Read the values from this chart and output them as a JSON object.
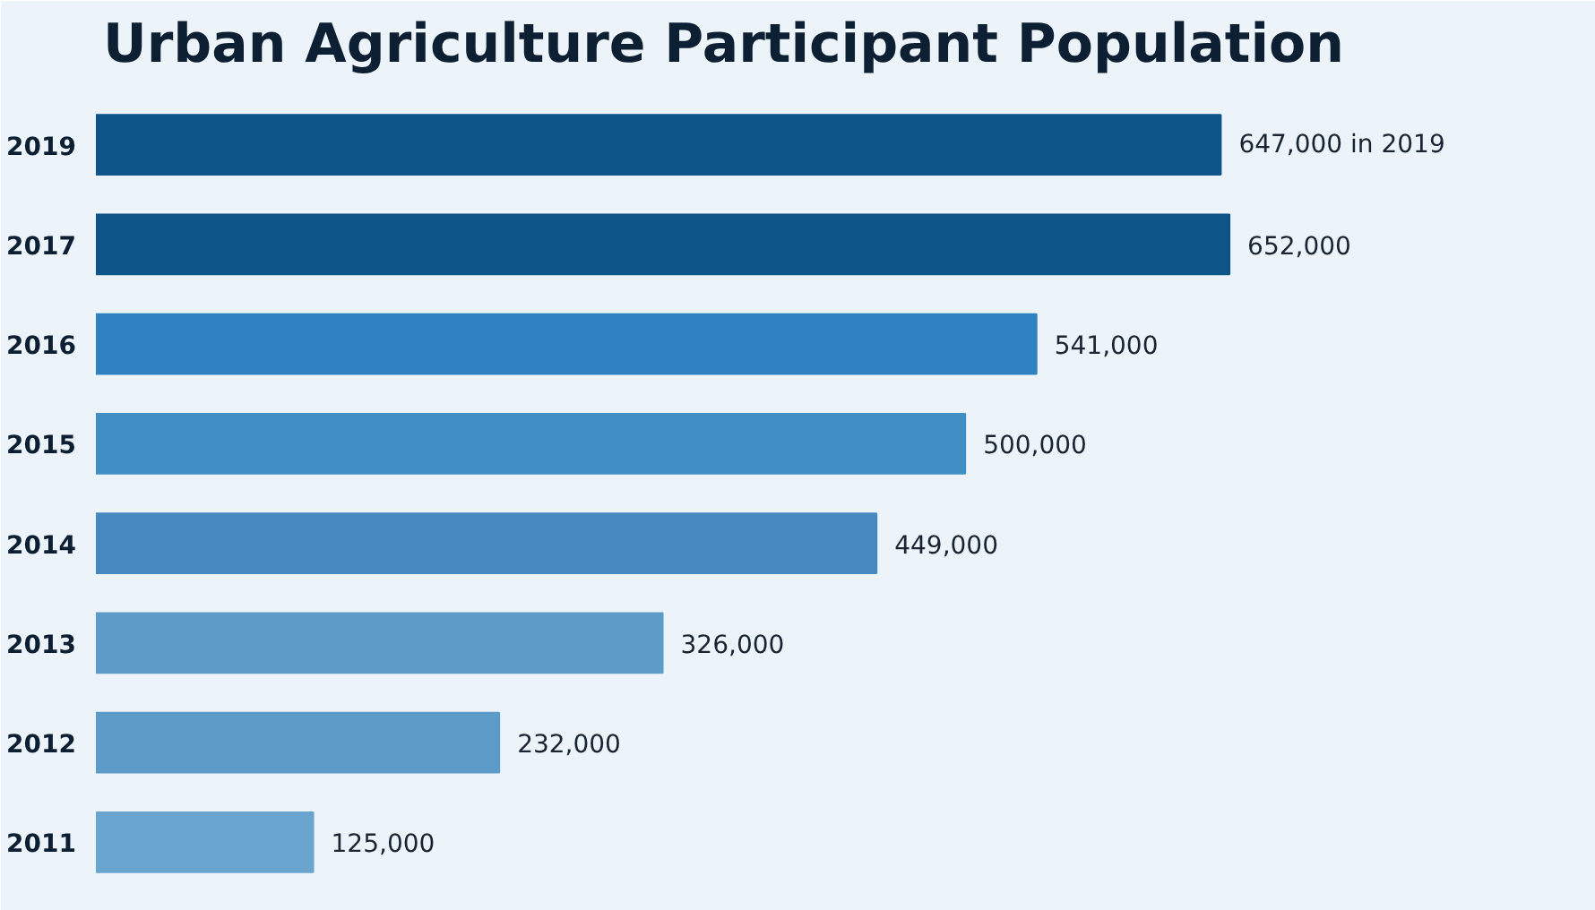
{
  "chart_data": {
    "type": "bar",
    "orientation": "horizontal",
    "title": "Urban Agriculture Participant Population",
    "categories": [
      "2019",
      "2017",
      "2016",
      "2015",
      "2014",
      "2013",
      "2012",
      "2011"
    ],
    "values": [
      647000,
      652000,
      541000,
      500000,
      449000,
      326000,
      232000,
      125000
    ],
    "colors": [
      "#0d5489",
      "#0d5489",
      "#2e82c2",
      "#3f8fc4",
      "#4589c0",
      "#5d9bc8",
      "#5d9bc8",
      "#6aa5d0"
    ],
    "value_labels": [
      "647,000 in 2019",
      "652,000",
      "541,000",
      "500,000",
      "449,000",
      "326,000",
      "232,000",
      "125,000"
    ],
    "grid": false
  }
}
